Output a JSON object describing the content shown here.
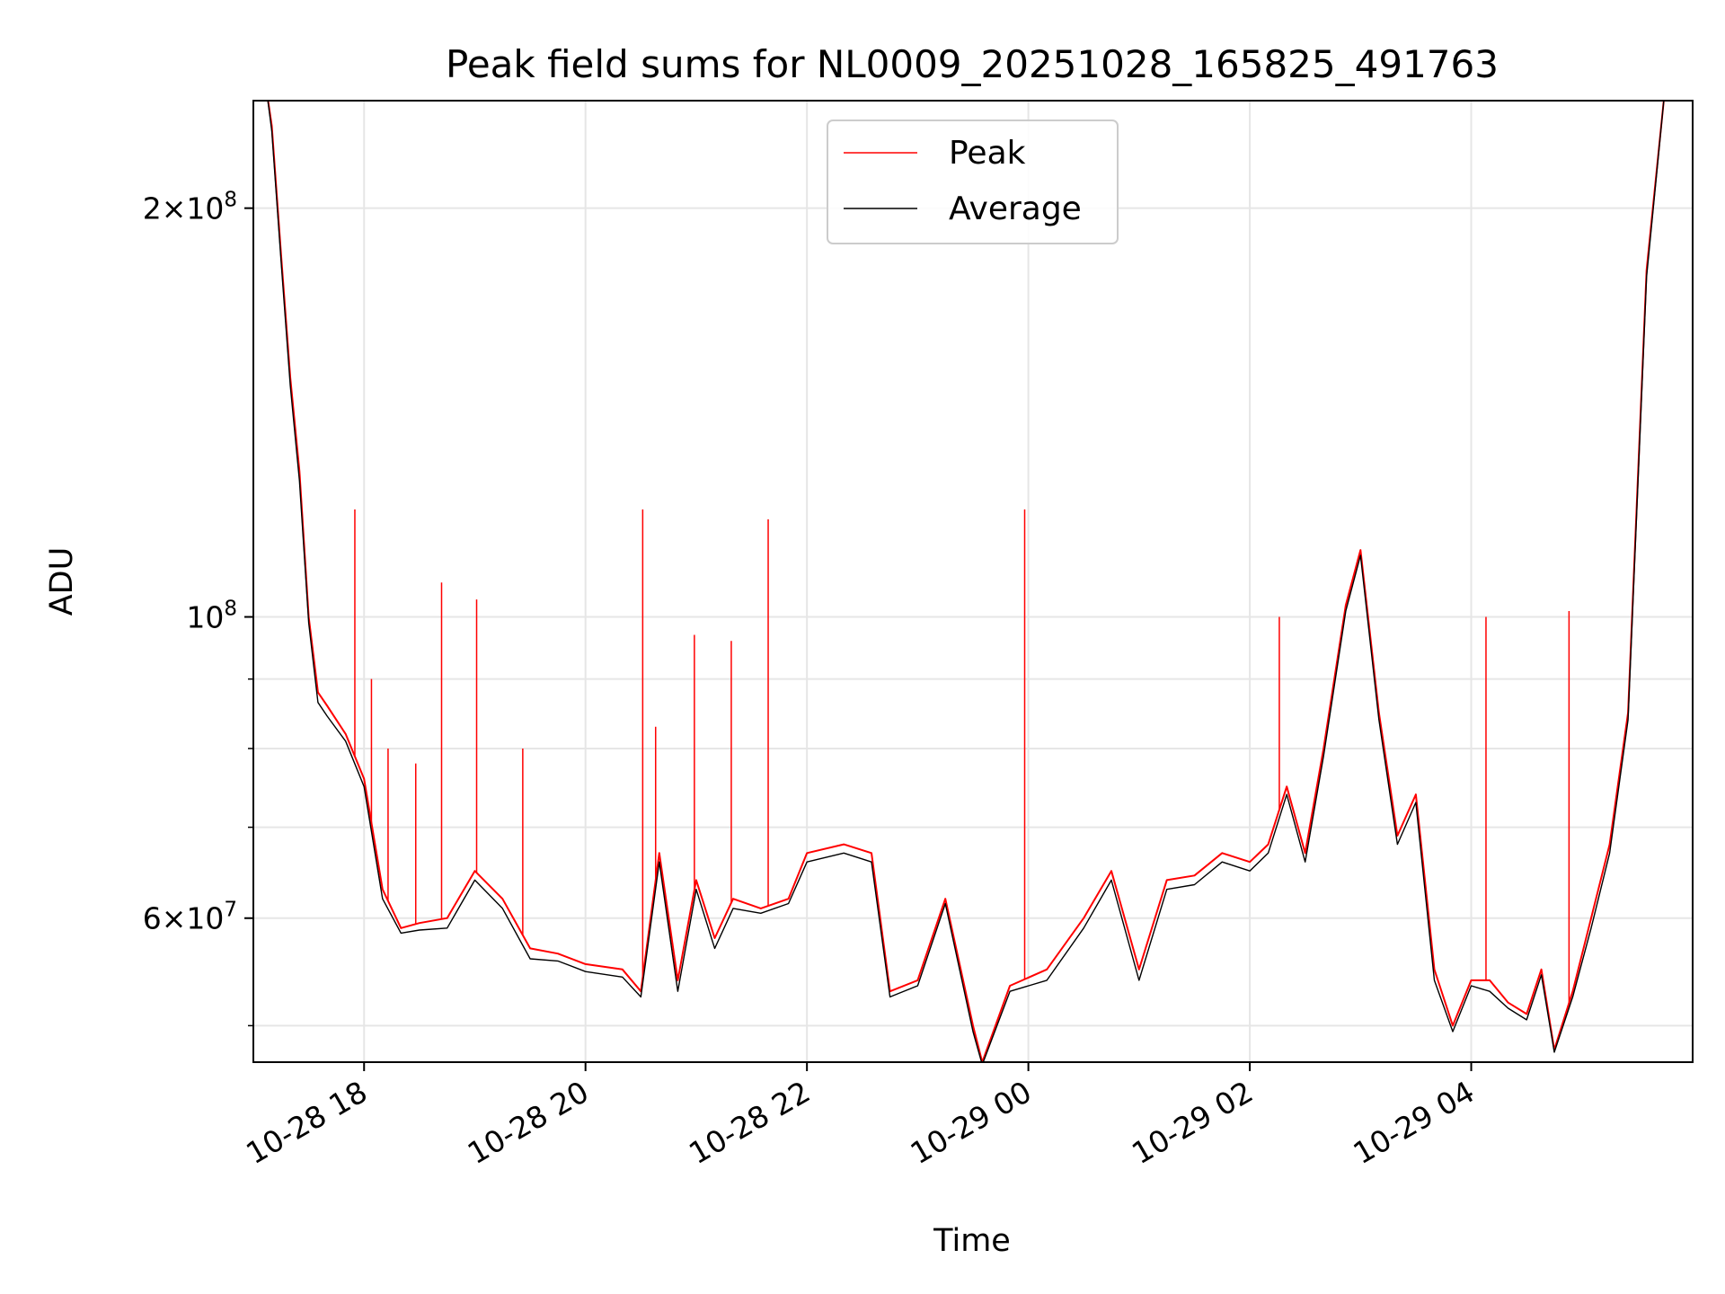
{
  "chart_data": {
    "type": "line",
    "title": "Peak field sums for NL0009_20251028_165825_491763",
    "xlabel": "Time",
    "ylabel": "ADU",
    "y_scale": "log",
    "ylim": [
      47000000,
      240000000
    ],
    "xlim": [
      "2025-10-28 17:00",
      "2025-10-29 06:00"
    ],
    "grid": true,
    "legend_position": "top-center",
    "x_ticks": [
      {
        "value": "2025-10-28 18:00",
        "label": "10-28 18"
      },
      {
        "value": "2025-10-28 20:00",
        "label": "10-28 20"
      },
      {
        "value": "2025-10-28 22:00",
        "label": "10-28 22"
      },
      {
        "value": "2025-10-29 00:00",
        "label": "10-29 00"
      },
      {
        "value": "2025-10-29 02:00",
        "label": "10-29 02"
      },
      {
        "value": "2025-10-29 04:00",
        "label": "10-29 04"
      }
    ],
    "y_major_ticks": [
      {
        "value": 100000000,
        "base": "10",
        "exp": "8"
      },
      {
        "value": 200000000,
        "mant": "2",
        "base": "10",
        "exp": "8"
      },
      {
        "value": 60000000,
        "mant": "6",
        "base": "10",
        "exp": "7"
      }
    ],
    "y_minor_ticks": [
      50000000,
      70000000,
      80000000,
      90000000
    ],
    "series": [
      {
        "name": "Peak",
        "color": "#ff0000",
        "x": [
          "2025-10-28 17:07",
          "2025-10-28 17:10",
          "2025-10-28 17:15",
          "2025-10-28 17:20",
          "2025-10-28 17:25",
          "2025-10-28 17:30",
          "2025-10-28 17:35",
          "2025-10-28 17:40",
          "2025-10-28 17:50",
          "2025-10-28 18:00",
          "2025-10-28 18:10",
          "2025-10-28 18:20",
          "2025-10-28 18:30",
          "2025-10-28 18:45",
          "2025-10-28 19:00",
          "2025-10-28 19:15",
          "2025-10-28 19:30",
          "2025-10-28 19:45",
          "2025-10-28 20:00",
          "2025-10-28 20:20",
          "2025-10-28 20:30",
          "2025-10-28 20:40",
          "2025-10-28 20:50",
          "2025-10-28 21:00",
          "2025-10-28 21:10",
          "2025-10-28 21:20",
          "2025-10-28 21:35",
          "2025-10-28 21:50",
          "2025-10-28 22:00",
          "2025-10-28 22:20",
          "2025-10-28 22:35",
          "2025-10-28 22:45",
          "2025-10-28 23:00",
          "2025-10-28 23:15",
          "2025-10-28 23:30",
          "2025-10-28 23:35",
          "2025-10-28 23:50",
          "2025-10-29 00:10",
          "2025-10-29 00:30",
          "2025-10-29 00:45",
          "2025-10-29 01:00",
          "2025-10-29 01:15",
          "2025-10-29 01:30",
          "2025-10-29 01:45",
          "2025-10-29 02:00",
          "2025-10-29 02:10",
          "2025-10-29 02:20",
          "2025-10-29 02:30",
          "2025-10-29 02:40",
          "2025-10-29 02:52",
          "2025-10-29 03:00",
          "2025-10-29 03:10",
          "2025-10-29 03:20",
          "2025-10-29 03:30",
          "2025-10-29 03:40",
          "2025-10-29 03:50",
          "2025-10-29 04:00",
          "2025-10-29 04:10",
          "2025-10-29 04:20",
          "2025-10-29 04:30",
          "2025-10-29 04:38",
          "2025-10-29 04:45",
          "2025-10-29 04:55",
          "2025-10-29 05:05",
          "2025-10-29 05:15",
          "2025-10-29 05:25",
          "2025-10-29 05:35",
          "2025-10-29 05:45"
        ],
        "y": [
          245000000,
          230000000,
          185000000,
          150000000,
          128000000,
          100000000,
          88000000,
          86000000,
          82000000,
          76000000,
          63000000,
          59000000,
          59500000,
          60000000,
          65000000,
          62000000,
          57000000,
          56500000,
          55500000,
          55000000,
          53000000,
          67000000,
          54000000,
          64000000,
          58000000,
          62000000,
          61000000,
          62000000,
          67000000,
          68000000,
          67000000,
          53000000,
          54000000,
          62000000,
          50000000,
          47000000,
          53500000,
          55000000,
          60000000,
          65000000,
          55000000,
          64000000,
          64500000,
          67000000,
          66000000,
          68000000,
          75000000,
          67000000,
          80000000,
          102000000,
          112000000,
          85000000,
          69000000,
          74000000,
          55000000,
          50000000,
          54000000,
          54000000,
          52000000,
          51000000,
          55000000,
          48000000,
          53000000,
          60000000,
          68000000,
          85000000,
          180000000,
          245000000
        ],
        "spikes": [
          {
            "x": "2025-10-28 17:25",
            "y": 128000000
          },
          {
            "x": "2025-10-28 17:55",
            "y": 120000000
          },
          {
            "x": "2025-10-28 18:04",
            "y": 90000000
          },
          {
            "x": "2025-10-28 18:13",
            "y": 80000000
          },
          {
            "x": "2025-10-28 18:28",
            "y": 78000000
          },
          {
            "x": "2025-10-28 18:42",
            "y": 106000000
          },
          {
            "x": "2025-10-28 19:01",
            "y": 103000000
          },
          {
            "x": "2025-10-28 19:26",
            "y": 80000000
          },
          {
            "x": "2025-10-28 20:31",
            "y": 120000000
          },
          {
            "x": "2025-10-28 20:38",
            "y": 83000000
          },
          {
            "x": "2025-10-28 20:59",
            "y": 97000000
          },
          {
            "x": "2025-10-28 21:19",
            "y": 96000000
          },
          {
            "x": "2025-10-28 21:39",
            "y": 118000000
          },
          {
            "x": "2025-10-28 23:58",
            "y": 120000000
          },
          {
            "x": "2025-10-29 02:16",
            "y": 100000000
          },
          {
            "x": "2025-10-29 04:08",
            "y": 100000000
          },
          {
            "x": "2025-10-29 04:53",
            "y": 101000000
          }
        ]
      },
      {
        "name": "Average",
        "color": "#000000",
        "x": [
          "2025-10-28 17:07",
          "2025-10-28 17:10",
          "2025-10-28 17:15",
          "2025-10-28 17:20",
          "2025-10-28 17:25",
          "2025-10-28 17:30",
          "2025-10-28 17:35",
          "2025-10-28 17:40",
          "2025-10-28 17:50",
          "2025-10-28 18:00",
          "2025-10-28 18:10",
          "2025-10-28 18:20",
          "2025-10-28 18:30",
          "2025-10-28 18:45",
          "2025-10-28 19:00",
          "2025-10-28 19:15",
          "2025-10-28 19:30",
          "2025-10-28 19:45",
          "2025-10-28 20:00",
          "2025-10-28 20:20",
          "2025-10-28 20:30",
          "2025-10-28 20:40",
          "2025-10-28 20:50",
          "2025-10-28 21:00",
          "2025-10-28 21:10",
          "2025-10-28 21:20",
          "2025-10-28 21:35",
          "2025-10-28 21:50",
          "2025-10-28 22:00",
          "2025-10-28 22:20",
          "2025-10-28 22:35",
          "2025-10-28 22:45",
          "2025-10-28 23:00",
          "2025-10-28 23:15",
          "2025-10-28 23:30",
          "2025-10-28 23:35",
          "2025-10-28 23:50",
          "2025-10-29 00:10",
          "2025-10-29 00:30",
          "2025-10-29 00:45",
          "2025-10-29 01:00",
          "2025-10-29 01:15",
          "2025-10-29 01:30",
          "2025-10-29 01:45",
          "2025-10-29 02:00",
          "2025-10-29 02:10",
          "2025-10-29 02:20",
          "2025-10-29 02:30",
          "2025-10-29 02:40",
          "2025-10-29 02:52",
          "2025-10-29 03:00",
          "2025-10-29 03:10",
          "2025-10-29 03:20",
          "2025-10-29 03:30",
          "2025-10-29 03:40",
          "2025-10-29 03:50",
          "2025-10-29 04:00",
          "2025-10-29 04:10",
          "2025-10-29 04:20",
          "2025-10-29 04:30",
          "2025-10-29 04:38",
          "2025-10-29 04:45",
          "2025-10-29 04:55",
          "2025-10-29 05:05",
          "2025-10-29 05:15",
          "2025-10-29 05:25",
          "2025-10-29 05:35",
          "2025-10-29 05:45"
        ],
        "y": [
          245000000,
          228000000,
          183000000,
          148000000,
          126000000,
          99000000,
          86500000,
          84500000,
          81000000,
          75000000,
          62000000,
          58500000,
          58800000,
          59000000,
          64000000,
          61000000,
          56000000,
          55800000,
          54800000,
          54300000,
          52500000,
          66000000,
          53000000,
          63000000,
          57000000,
          61000000,
          60500000,
          61500000,
          66000000,
          67000000,
          66000000,
          52500000,
          53500000,
          61500000,
          49500000,
          46800000,
          53000000,
          54000000,
          59000000,
          64000000,
          54000000,
          63000000,
          63500000,
          66000000,
          65000000,
          67000000,
          74000000,
          66000000,
          79000000,
          101000000,
          111000000,
          84000000,
          68000000,
          73000000,
          54000000,
          49500000,
          53500000,
          53000000,
          51500000,
          50500000,
          54500000,
          47800000,
          52500000,
          59000000,
          67000000,
          84000000,
          178000000,
          245000000
        ]
      }
    ]
  }
}
